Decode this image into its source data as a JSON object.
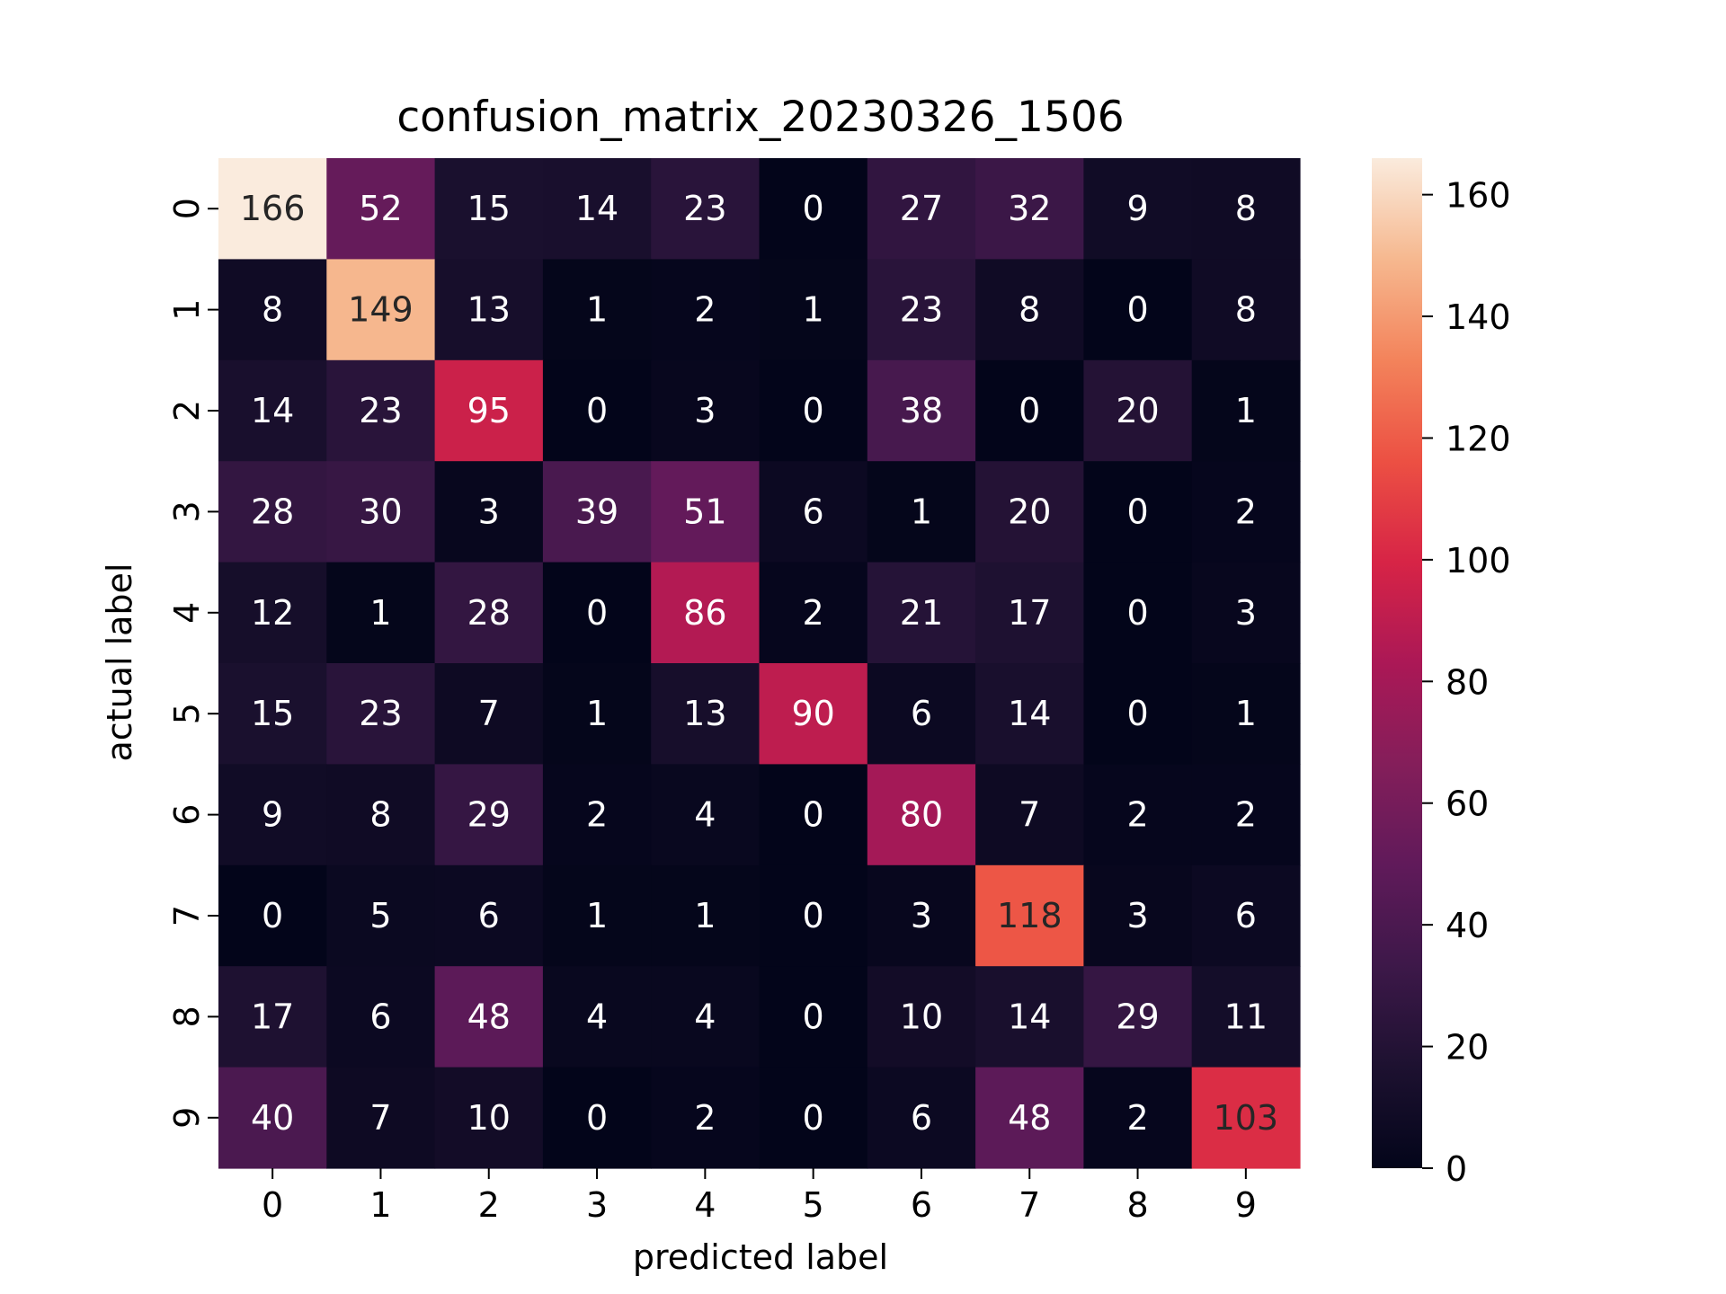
{
  "chart_data": {
    "type": "heatmap",
    "title": "confusion_matrix_20230326_1506",
    "xlabel": "predicted label",
    "ylabel": "actual label",
    "x_categories": [
      "0",
      "1",
      "2",
      "3",
      "4",
      "5",
      "6",
      "7",
      "8",
      "9"
    ],
    "y_categories": [
      "0",
      "1",
      "2",
      "3",
      "4",
      "5",
      "6",
      "7",
      "8",
      "9"
    ],
    "values": [
      [
        166,
        52,
        15,
        14,
        23,
        0,
        27,
        32,
        9,
        8
      ],
      [
        8,
        149,
        13,
        1,
        2,
        1,
        23,
        8,
        0,
        8
      ],
      [
        14,
        23,
        95,
        0,
        3,
        0,
        38,
        0,
        20,
        1
      ],
      [
        28,
        30,
        3,
        39,
        51,
        6,
        1,
        20,
        0,
        2
      ],
      [
        12,
        1,
        28,
        0,
        86,
        2,
        21,
        17,
        0,
        3
      ],
      [
        15,
        23,
        7,
        1,
        13,
        90,
        6,
        14,
        0,
        1
      ],
      [
        9,
        8,
        29,
        2,
        4,
        0,
        80,
        7,
        2,
        2
      ],
      [
        0,
        5,
        6,
        1,
        1,
        0,
        3,
        118,
        3,
        6
      ],
      [
        17,
        6,
        48,
        4,
        4,
        0,
        10,
        14,
        29,
        11
      ],
      [
        40,
        7,
        10,
        0,
        2,
        0,
        6,
        48,
        2,
        103
      ]
    ],
    "colorbar": {
      "min": 0,
      "max": 166,
      "ticks": [
        0,
        20,
        40,
        60,
        80,
        100,
        120,
        140,
        160
      ],
      "colormap": "rocket"
    },
    "grid": false
  }
}
